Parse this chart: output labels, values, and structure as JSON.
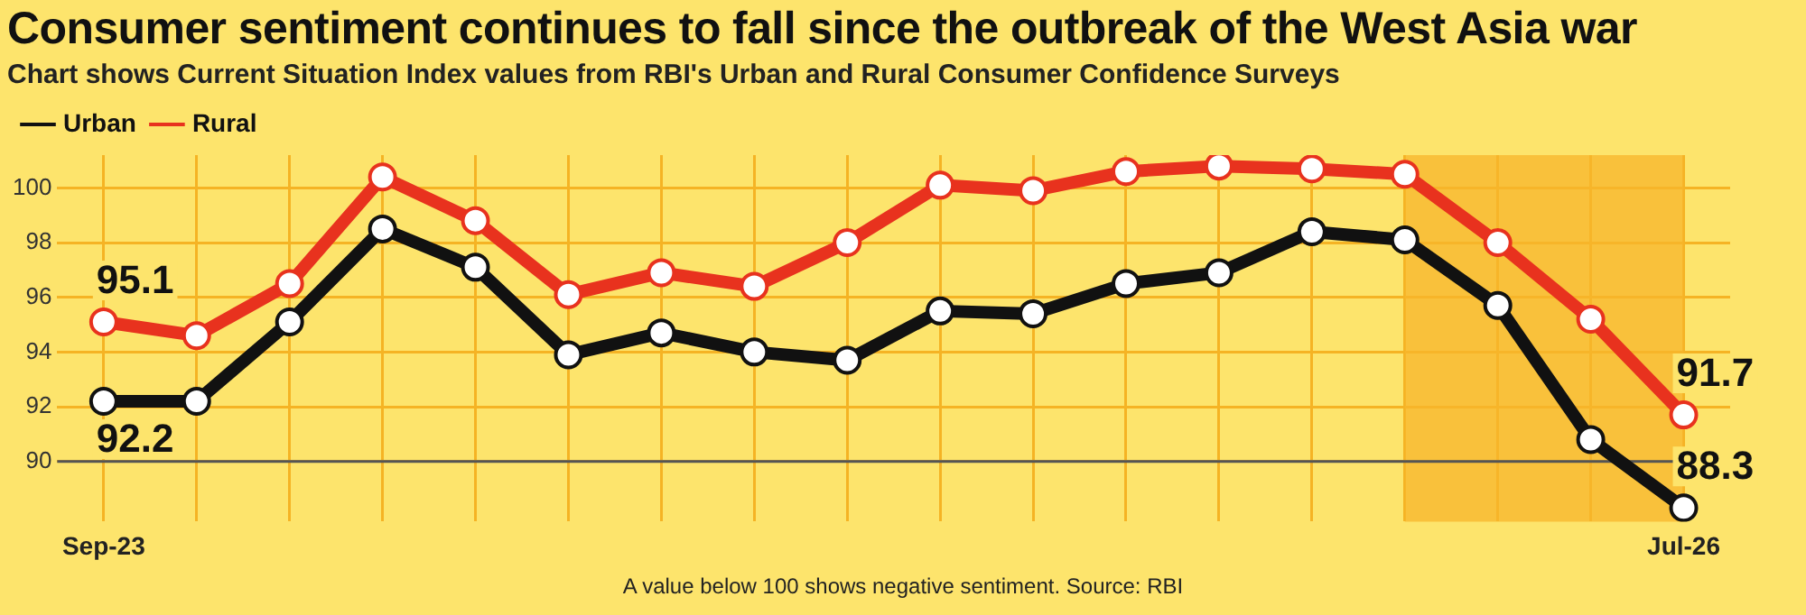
{
  "chart_data": {
    "type": "line",
    "title": "Consumer sentiment continues to fall since the outbreak of the West Asia war",
    "subtitle": "Chart shows Current Situation Index values from RBI's Urban and Rural Consumer Confidence Surveys",
    "x": [
      "2023-09",
      "2023-11",
      "2024-01",
      "2024-03",
      "2024-05",
      "2024-07",
      "2024-09",
      "2024-11",
      "2025-01",
      "2025-03",
      "2025-05",
      "2025-07",
      "2025-09",
      "2025-11",
      "2026-01",
      "2026-03",
      "2026-05",
      "2026-07"
    ],
    "series": [
      {
        "name": "Urban",
        "color": "#111111",
        "values": [
          92.2,
          92.2,
          95.1,
          98.5,
          97.1,
          93.9,
          94.7,
          94.0,
          93.7,
          95.5,
          95.4,
          96.5,
          96.9,
          98.4,
          98.1,
          95.7,
          90.8,
          88.3
        ],
        "value_labels": [
          "92.2",
          null,
          null,
          null,
          null,
          null,
          null,
          null,
          null,
          null,
          null,
          null,
          null,
          null,
          null,
          null,
          null,
          "88.3"
        ]
      },
      {
        "name": "Rural",
        "color": "#e8321e",
        "values": [
          95.1,
          94.6,
          96.5,
          100.4,
          98.8,
          96.1,
          96.9,
          96.4,
          98.0,
          100.1,
          99.9,
          100.6,
          100.8,
          100.7,
          100.5,
          98.0,
          95.2,
          91.7
        ],
        "value_labels": [
          "95.1",
          null,
          null,
          null,
          null,
          null,
          null,
          null,
          null,
          null,
          null,
          null,
          null,
          null,
          null,
          null,
          null,
          "91.7"
        ]
      }
    ],
    "xticks": [
      {
        "value": "2023-09",
        "label": "Sep-23"
      },
      {
        "value": "2023-11",
        "label": null
      },
      {
        "value": "2024-01",
        "label": null
      },
      {
        "value": "2024-03",
        "label": null
      },
      {
        "value": "2024-05",
        "label": null
      },
      {
        "value": "2024-07",
        "label": null
      },
      {
        "value": "2024-09",
        "label": null
      },
      {
        "value": "2024-11",
        "label": null
      },
      {
        "value": "2025-01",
        "label": null
      },
      {
        "value": "2025-03",
        "label": null
      },
      {
        "value": "2025-05",
        "label": null
      },
      {
        "value": "2025-07",
        "label": null
      },
      {
        "value": "2025-09",
        "label": null
      },
      {
        "value": "2025-11",
        "label": null
      },
      {
        "value": "2026-01",
        "label": null
      },
      {
        "value": "2026-03",
        "label": null
      },
      {
        "value": "2026-05",
        "label": null
      },
      {
        "value": "2026-07",
        "label": "Jul-26"
      }
    ],
    "xlim": [
      "2023-08",
      "2026-08"
    ],
    "ylim": [
      87.8,
      101.2
    ],
    "yticks": [
      90,
      92,
      94,
      96,
      98,
      100
    ],
    "bands": [
      {
        "axis": "x",
        "from": "2026-01",
        "to": "2026-07",
        "color": "#f7b52b"
      }
    ],
    "ref_lines": [
      {
        "axis": "y",
        "value": 90,
        "color": "#555555"
      }
    ],
    "grid": true,
    "legend": "top left",
    "marker": "circle",
    "line_style": "solid",
    "annotations": [
      "A value below 100 shows negative sentiment. Source: RBI"
    ]
  }
}
